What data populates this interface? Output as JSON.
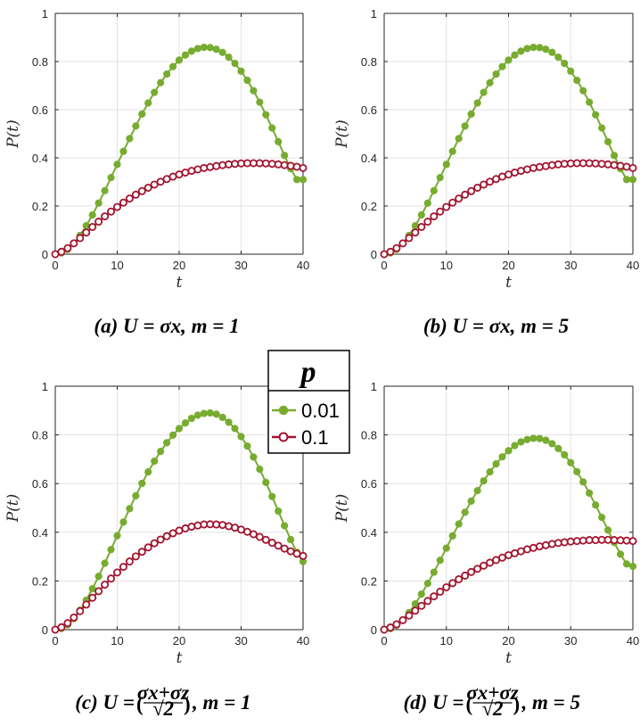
{
  "legend": {
    "title": "p",
    "entries": [
      {
        "label": "0.01",
        "color": "#77ac30",
        "marker": "filled-circle"
      },
      {
        "label": "0.1",
        "color": "#a2142f",
        "marker": "open-circle"
      }
    ]
  },
  "chart_data": [
    {
      "type": "line",
      "panel": "a",
      "caption": "(a) U = σx, m = 1",
      "xlabel": "t",
      "ylabel": "P(t)",
      "xlim": [
        0,
        40
      ],
      "ylim": [
        0,
        1
      ],
      "xticks": [
        "0",
        "10",
        "20",
        "30",
        "40"
      ],
      "yticks": [
        "0",
        "0.2",
        "0.4",
        "0.6",
        "0.8",
        "1"
      ],
      "grid": true,
      "series": [
        {
          "name": "0.01",
          "color": "#77ac30",
          "marker": "filled",
          "x": [
            0,
            1,
            2,
            3,
            4,
            5,
            6,
            7,
            8,
            9,
            10,
            11,
            12,
            13,
            14,
            15,
            16,
            17,
            18,
            19,
            20,
            21,
            22,
            23,
            24,
            25,
            26,
            27,
            28,
            29,
            30,
            31,
            32,
            33,
            34,
            35,
            36,
            37,
            38,
            39,
            40
          ],
          "y": [
            0,
            0.005,
            0.02,
            0.045,
            0.078,
            0.118,
            0.163,
            0.212,
            0.264,
            0.318,
            0.373,
            0.427,
            0.48,
            0.532,
            0.582,
            0.628,
            0.672,
            0.712,
            0.748,
            0.779,
            0.806,
            0.827,
            0.843,
            0.854,
            0.859,
            0.858,
            0.851,
            0.838,
            0.818,
            0.792,
            0.76,
            0.722,
            0.679,
            0.631,
            0.579,
            0.524,
            0.467,
            0.41,
            0.355,
            0.31,
            0.31
          ]
        },
        {
          "name": "0.1",
          "color": "#a2142f",
          "marker": "open",
          "x": [
            0,
            1,
            2,
            3,
            4,
            5,
            6,
            7,
            8,
            9,
            10,
            11,
            12,
            13,
            14,
            15,
            16,
            17,
            18,
            19,
            20,
            21,
            22,
            23,
            24,
            25,
            26,
            27,
            28,
            29,
            30,
            31,
            32,
            33,
            34,
            35,
            36,
            37,
            38,
            39,
            40
          ],
          "y": [
            0,
            0.01,
            0.025,
            0.045,
            0.067,
            0.09,
            0.113,
            0.135,
            0.157,
            0.177,
            0.196,
            0.214,
            0.231,
            0.247,
            0.262,
            0.276,
            0.289,
            0.301,
            0.312,
            0.322,
            0.331,
            0.339,
            0.346,
            0.352,
            0.358,
            0.362,
            0.366,
            0.37,
            0.373,
            0.375,
            0.377,
            0.378,
            0.378,
            0.378,
            0.377,
            0.375,
            0.373,
            0.37,
            0.367,
            0.363,
            0.358
          ]
        }
      ]
    },
    {
      "type": "line",
      "panel": "b",
      "caption": "(b) U = σx, m = 5",
      "xlabel": "t",
      "ylabel": "P(t)",
      "xlim": [
        0,
        40
      ],
      "ylim": [
        0,
        1
      ],
      "xticks": [
        "0",
        "10",
        "20",
        "30",
        "40"
      ],
      "yticks": [
        "0",
        "0.2",
        "0.4",
        "0.6",
        "0.8",
        "1"
      ],
      "grid": true,
      "series": [
        {
          "name": "0.01",
          "color": "#77ac30",
          "marker": "filled",
          "x": [
            0,
            1,
            2,
            3,
            4,
            5,
            6,
            7,
            8,
            9,
            10,
            11,
            12,
            13,
            14,
            15,
            16,
            17,
            18,
            19,
            20,
            21,
            22,
            23,
            24,
            25,
            26,
            27,
            28,
            29,
            30,
            31,
            32,
            33,
            34,
            35,
            36,
            37,
            38,
            39,
            40
          ],
          "y": [
            0,
            0.005,
            0.02,
            0.045,
            0.078,
            0.118,
            0.163,
            0.212,
            0.264,
            0.318,
            0.373,
            0.427,
            0.48,
            0.532,
            0.582,
            0.628,
            0.672,
            0.712,
            0.748,
            0.779,
            0.806,
            0.827,
            0.843,
            0.854,
            0.859,
            0.858,
            0.851,
            0.838,
            0.818,
            0.792,
            0.76,
            0.722,
            0.679,
            0.631,
            0.579,
            0.524,
            0.467,
            0.41,
            0.355,
            0.31,
            0.31
          ]
        },
        {
          "name": "0.1",
          "color": "#a2142f",
          "marker": "open",
          "x": [
            0,
            1,
            2,
            3,
            4,
            5,
            6,
            7,
            8,
            9,
            10,
            11,
            12,
            13,
            14,
            15,
            16,
            17,
            18,
            19,
            20,
            21,
            22,
            23,
            24,
            25,
            26,
            27,
            28,
            29,
            30,
            31,
            32,
            33,
            34,
            35,
            36,
            37,
            38,
            39,
            40
          ],
          "y": [
            0,
            0.01,
            0.025,
            0.045,
            0.067,
            0.09,
            0.113,
            0.135,
            0.157,
            0.177,
            0.196,
            0.214,
            0.231,
            0.247,
            0.262,
            0.276,
            0.289,
            0.301,
            0.312,
            0.322,
            0.331,
            0.339,
            0.346,
            0.352,
            0.358,
            0.362,
            0.366,
            0.37,
            0.373,
            0.375,
            0.377,
            0.378,
            0.378,
            0.378,
            0.377,
            0.375,
            0.373,
            0.37,
            0.367,
            0.363,
            0.358
          ]
        }
      ]
    },
    {
      "type": "line",
      "panel": "c",
      "caption": "(c) U = (σx+σz / √2), m = 1",
      "caption_parts": {
        "lead": "(c) U = ",
        "num": "σx+σz",
        "den": "√2",
        "tail": ", m = 1"
      },
      "xlabel": "t",
      "ylabel": "P(t)",
      "xlim": [
        0,
        40
      ],
      "ylim": [
        0,
        1
      ],
      "xticks": [
        "0",
        "10",
        "20",
        "30",
        "40"
      ],
      "yticks": [
        "0",
        "0.2",
        "0.4",
        "0.6",
        "0.8",
        "1"
      ],
      "grid": true,
      "series": [
        {
          "name": "0.01",
          "color": "#77ac30",
          "marker": "filled",
          "x": [
            0,
            1,
            2,
            3,
            4,
            5,
            6,
            7,
            8,
            9,
            10,
            11,
            12,
            13,
            14,
            15,
            16,
            17,
            18,
            19,
            20,
            21,
            22,
            23,
            24,
            25,
            26,
            27,
            28,
            29,
            30,
            31,
            32,
            33,
            34,
            35,
            36,
            37,
            38,
            39,
            40
          ],
          "y": [
            0,
            0.005,
            0.02,
            0.045,
            0.08,
            0.121,
            0.168,
            0.219,
            0.273,
            0.329,
            0.386,
            0.442,
            0.497,
            0.55,
            0.601,
            0.648,
            0.692,
            0.732,
            0.768,
            0.799,
            0.826,
            0.849,
            0.868,
            0.881,
            0.888,
            0.89,
            0.885,
            0.872,
            0.852,
            0.826,
            0.793,
            0.754,
            0.709,
            0.659,
            0.605,
            0.547,
            0.487,
            0.427,
            0.37,
            0.318,
            0.28
          ]
        },
        {
          "name": "0.1",
          "color": "#a2142f",
          "marker": "open",
          "x": [
            0,
            1,
            2,
            3,
            4,
            5,
            6,
            7,
            8,
            9,
            10,
            11,
            12,
            13,
            14,
            15,
            16,
            17,
            18,
            19,
            20,
            21,
            22,
            23,
            24,
            25,
            26,
            27,
            28,
            29,
            30,
            31,
            32,
            33,
            34,
            35,
            36,
            37,
            38,
            39,
            40
          ],
          "y": [
            0,
            0.01,
            0.027,
            0.05,
            0.076,
            0.103,
            0.131,
            0.158,
            0.185,
            0.21,
            0.235,
            0.258,
            0.28,
            0.301,
            0.32,
            0.338,
            0.355,
            0.37,
            0.384,
            0.396,
            0.407,
            0.416,
            0.423,
            0.428,
            0.432,
            0.433,
            0.432,
            0.43,
            0.425,
            0.419,
            0.411,
            0.402,
            0.392,
            0.381,
            0.369,
            0.357,
            0.345,
            0.333,
            0.322,
            0.312,
            0.303
          ]
        }
      ]
    },
    {
      "type": "line",
      "panel": "d",
      "caption": "(d) U = (σx+σz / √2), m = 5",
      "caption_parts": {
        "lead": "(d) U = ",
        "num": "σx+σz",
        "den": "√2",
        "tail": ", m = 5"
      },
      "xlabel": "t",
      "ylabel": "P(t)",
      "xlim": [
        0,
        40
      ],
      "ylim": [
        0,
        1
      ],
      "xticks": [
        "0",
        "10",
        "20",
        "30",
        "40"
      ],
      "yticks": [
        "0",
        "0.2",
        "0.4",
        "0.6",
        "0.8",
        "1"
      ],
      "grid": true,
      "series": [
        {
          "name": "0.01",
          "color": "#77ac30",
          "marker": "filled",
          "x": [
            0,
            1,
            2,
            3,
            4,
            5,
            6,
            7,
            8,
            9,
            10,
            11,
            12,
            13,
            14,
            15,
            16,
            17,
            18,
            19,
            20,
            21,
            22,
            23,
            24,
            25,
            26,
            27,
            28,
            29,
            30,
            31,
            32,
            33,
            34,
            35,
            36,
            37,
            38,
            39,
            40
          ],
          "y": [
            0,
            0.004,
            0.018,
            0.04,
            0.07,
            0.106,
            0.146,
            0.19,
            0.236,
            0.285,
            0.335,
            0.385,
            0.434,
            0.482,
            0.528,
            0.571,
            0.611,
            0.648,
            0.681,
            0.71,
            0.735,
            0.756,
            0.771,
            0.781,
            0.786,
            0.785,
            0.778,
            0.764,
            0.744,
            0.718,
            0.686,
            0.649,
            0.607,
            0.561,
            0.512,
            0.461,
            0.409,
            0.358,
            0.31,
            0.27,
            0.26
          ]
        },
        {
          "name": "0.1",
          "color": "#a2142f",
          "marker": "open",
          "x": [
            0,
            1,
            2,
            3,
            4,
            5,
            6,
            7,
            8,
            9,
            10,
            11,
            12,
            13,
            14,
            15,
            16,
            17,
            18,
            19,
            20,
            21,
            22,
            23,
            24,
            25,
            26,
            27,
            28,
            29,
            30,
            31,
            32,
            33,
            34,
            35,
            36,
            37,
            38,
            39,
            40
          ],
          "y": [
            0,
            0.009,
            0.022,
            0.039,
            0.058,
            0.078,
            0.098,
            0.118,
            0.137,
            0.156,
            0.174,
            0.191,
            0.207,
            0.222,
            0.237,
            0.25,
            0.263,
            0.275,
            0.286,
            0.296,
            0.306,
            0.314,
            0.322,
            0.33,
            0.336,
            0.342,
            0.347,
            0.352,
            0.356,
            0.359,
            0.362,
            0.364,
            0.366,
            0.368,
            0.368,
            0.369,
            0.369,
            0.368,
            0.367,
            0.366,
            0.364
          ]
        }
      ]
    }
  ]
}
